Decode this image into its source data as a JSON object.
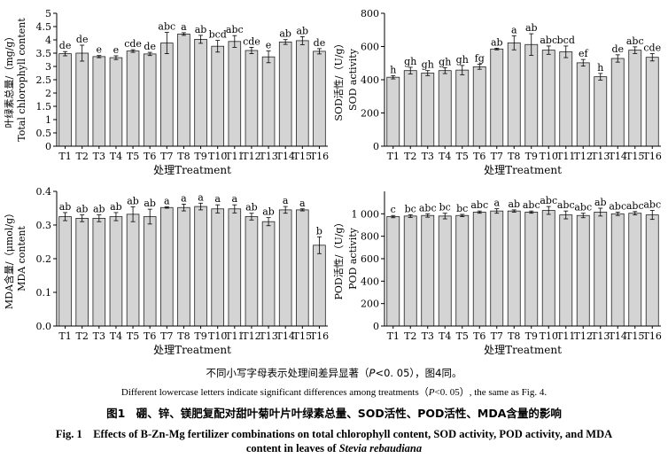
{
  "categories": [
    "T1",
    "T2",
    "T3",
    "T4",
    "T5",
    "T6",
    "T7",
    "T8",
    "T9",
    "T10",
    "T11",
    "T12",
    "T13",
    "T14",
    "T15",
    "T16"
  ],
  "xlabel": "处理Treatment",
  "chart_data": [
    {
      "type": "bar",
      "ylabel_cn": "叶绿素总量/（mg/g）",
      "ylabel_en": "Total chlorophyll content",
      "ylim": [
        0,
        5
      ],
      "yticks": [
        0,
        0.5,
        1,
        1.5,
        2,
        2.5,
        3,
        3.5,
        4,
        4.5,
        5
      ],
      "ytick_labels": [
        "0",
        "0.5",
        "1",
        "1.5",
        "2",
        "2.5",
        "3",
        "3.5",
        "4",
        "4.5",
        "5"
      ],
      "values": [
        3.48,
        3.5,
        3.37,
        3.33,
        3.58,
        3.47,
        3.88,
        4.22,
        4.02,
        3.76,
        3.94,
        3.6,
        3.36,
        3.92,
        3.97,
        3.57
      ],
      "errors": [
        0.08,
        0.3,
        0.04,
        0.07,
        0.05,
        0.06,
        0.4,
        0.05,
        0.15,
        0.22,
        0.22,
        0.12,
        0.22,
        0.09,
        0.15,
        0.1
      ],
      "letters": [
        "de",
        "de",
        "e",
        "e",
        "cde",
        "de",
        "abc",
        "a",
        "ab",
        "bcd",
        "abc",
        "cde",
        "e",
        "ab",
        "ab",
        "de"
      ]
    },
    {
      "type": "bar",
      "ylabel_cn": "SOD活性/（U/g）",
      "ylabel_en": "SOD activity",
      "ylim": [
        0,
        800
      ],
      "yticks": [
        0,
        200,
        400,
        600,
        800
      ],
      "ytick_labels": [
        "0",
        "200",
        "400",
        "600",
        "800"
      ],
      "values": [
        415,
        455,
        440,
        455,
        458,
        478,
        585,
        622,
        612,
        578,
        568,
        502,
        418,
        528,
        578,
        535
      ],
      "errors": [
        10,
        20,
        15,
        18,
        28,
        15,
        5,
        42,
        65,
        25,
        35,
        20,
        20,
        22,
        20,
        22
      ],
      "letters": [
        "h",
        "gh",
        "gh",
        "gh",
        "gh",
        "fg",
        "ab",
        "a",
        "ab",
        "abc",
        "bcd",
        "ef",
        "h",
        "de",
        "abc",
        "cde"
      ]
    },
    {
      "type": "bar",
      "ylabel_cn": "MDA含量/（μmol/g）",
      "ylabel_en": "MDA content",
      "ylim": [
        0,
        0.4
      ],
      "yticks": [
        0,
        0.1,
        0.2,
        0.3,
        0.4
      ],
      "ytick_labels": [
        "0.0",
        "0.1",
        "0.2",
        "0.3",
        "0.4"
      ],
      "values": [
        0.325,
        0.32,
        0.32,
        0.325,
        0.332,
        0.325,
        0.352,
        0.352,
        0.355,
        0.348,
        0.348,
        0.325,
        0.31,
        0.345,
        0.345,
        0.24
      ],
      "errors": [
        0.012,
        0.01,
        0.01,
        0.012,
        0.022,
        0.022,
        0.002,
        0.01,
        0.01,
        0.012,
        0.012,
        0.01,
        0.012,
        0.01,
        0.003,
        0.025
      ],
      "letters": [
        "ab",
        "ab",
        "ab",
        "ab",
        "ab",
        "ab",
        "a",
        "a",
        "a",
        "a",
        "a",
        "ab",
        "ab",
        "a",
        "a",
        "b"
      ]
    },
    {
      "type": "bar",
      "ylabel_cn": "POD活性/（U/g）",
      "ylabel_en": "POD activity",
      "ylim": [
        0,
        1200
      ],
      "yticks": [
        0,
        200,
        400,
        600,
        800,
        1000
      ],
      "ytick_labels": [
        "0",
        "200",
        "400",
        "600",
        "800",
        "1 000"
      ],
      "values": [
        975,
        980,
        985,
        980,
        985,
        1015,
        1025,
        1025,
        1015,
        1030,
        990,
        985,
        1015,
        1000,
        1005,
        990
      ],
      "errors": [
        10,
        12,
        15,
        25,
        10,
        10,
        20,
        10,
        10,
        35,
        35,
        20,
        35,
        15,
        15,
        40
      ],
      "letters": [
        "c",
        "bc",
        "abc",
        "bc",
        "bc",
        "abc",
        "a",
        "ab",
        "abc",
        "abc",
        "abc",
        "abc",
        "ab",
        "abc",
        "abc",
        "abc"
      ]
    }
  ],
  "caption": {
    "note_cn_pre": "不同小写字母表示处理间差异显著（",
    "note_cn_p": "P",
    "note_cn_post": "<0. 05），图4同。",
    "note_en_pre": "Different lowercase letters indicate significant differences among treatments（",
    "note_en_p": "P",
    "note_en_post": "<0. 05）, the same as Fig. 4.",
    "title_cn": "图1　硼、锌、镁肥复配对甜叶菊叶片叶绿素总量、SOD活性、POD活性、MDA含量的影响",
    "title_en_1": "Fig. 1　Effects of B-Zn-Mg fertilizer combinations on total chlorophyll content, SOD activity, POD activity, and MDA",
    "title_en_2_pre": "content in leaves of ",
    "title_en_2_species": "Stevia rebaudiana"
  }
}
